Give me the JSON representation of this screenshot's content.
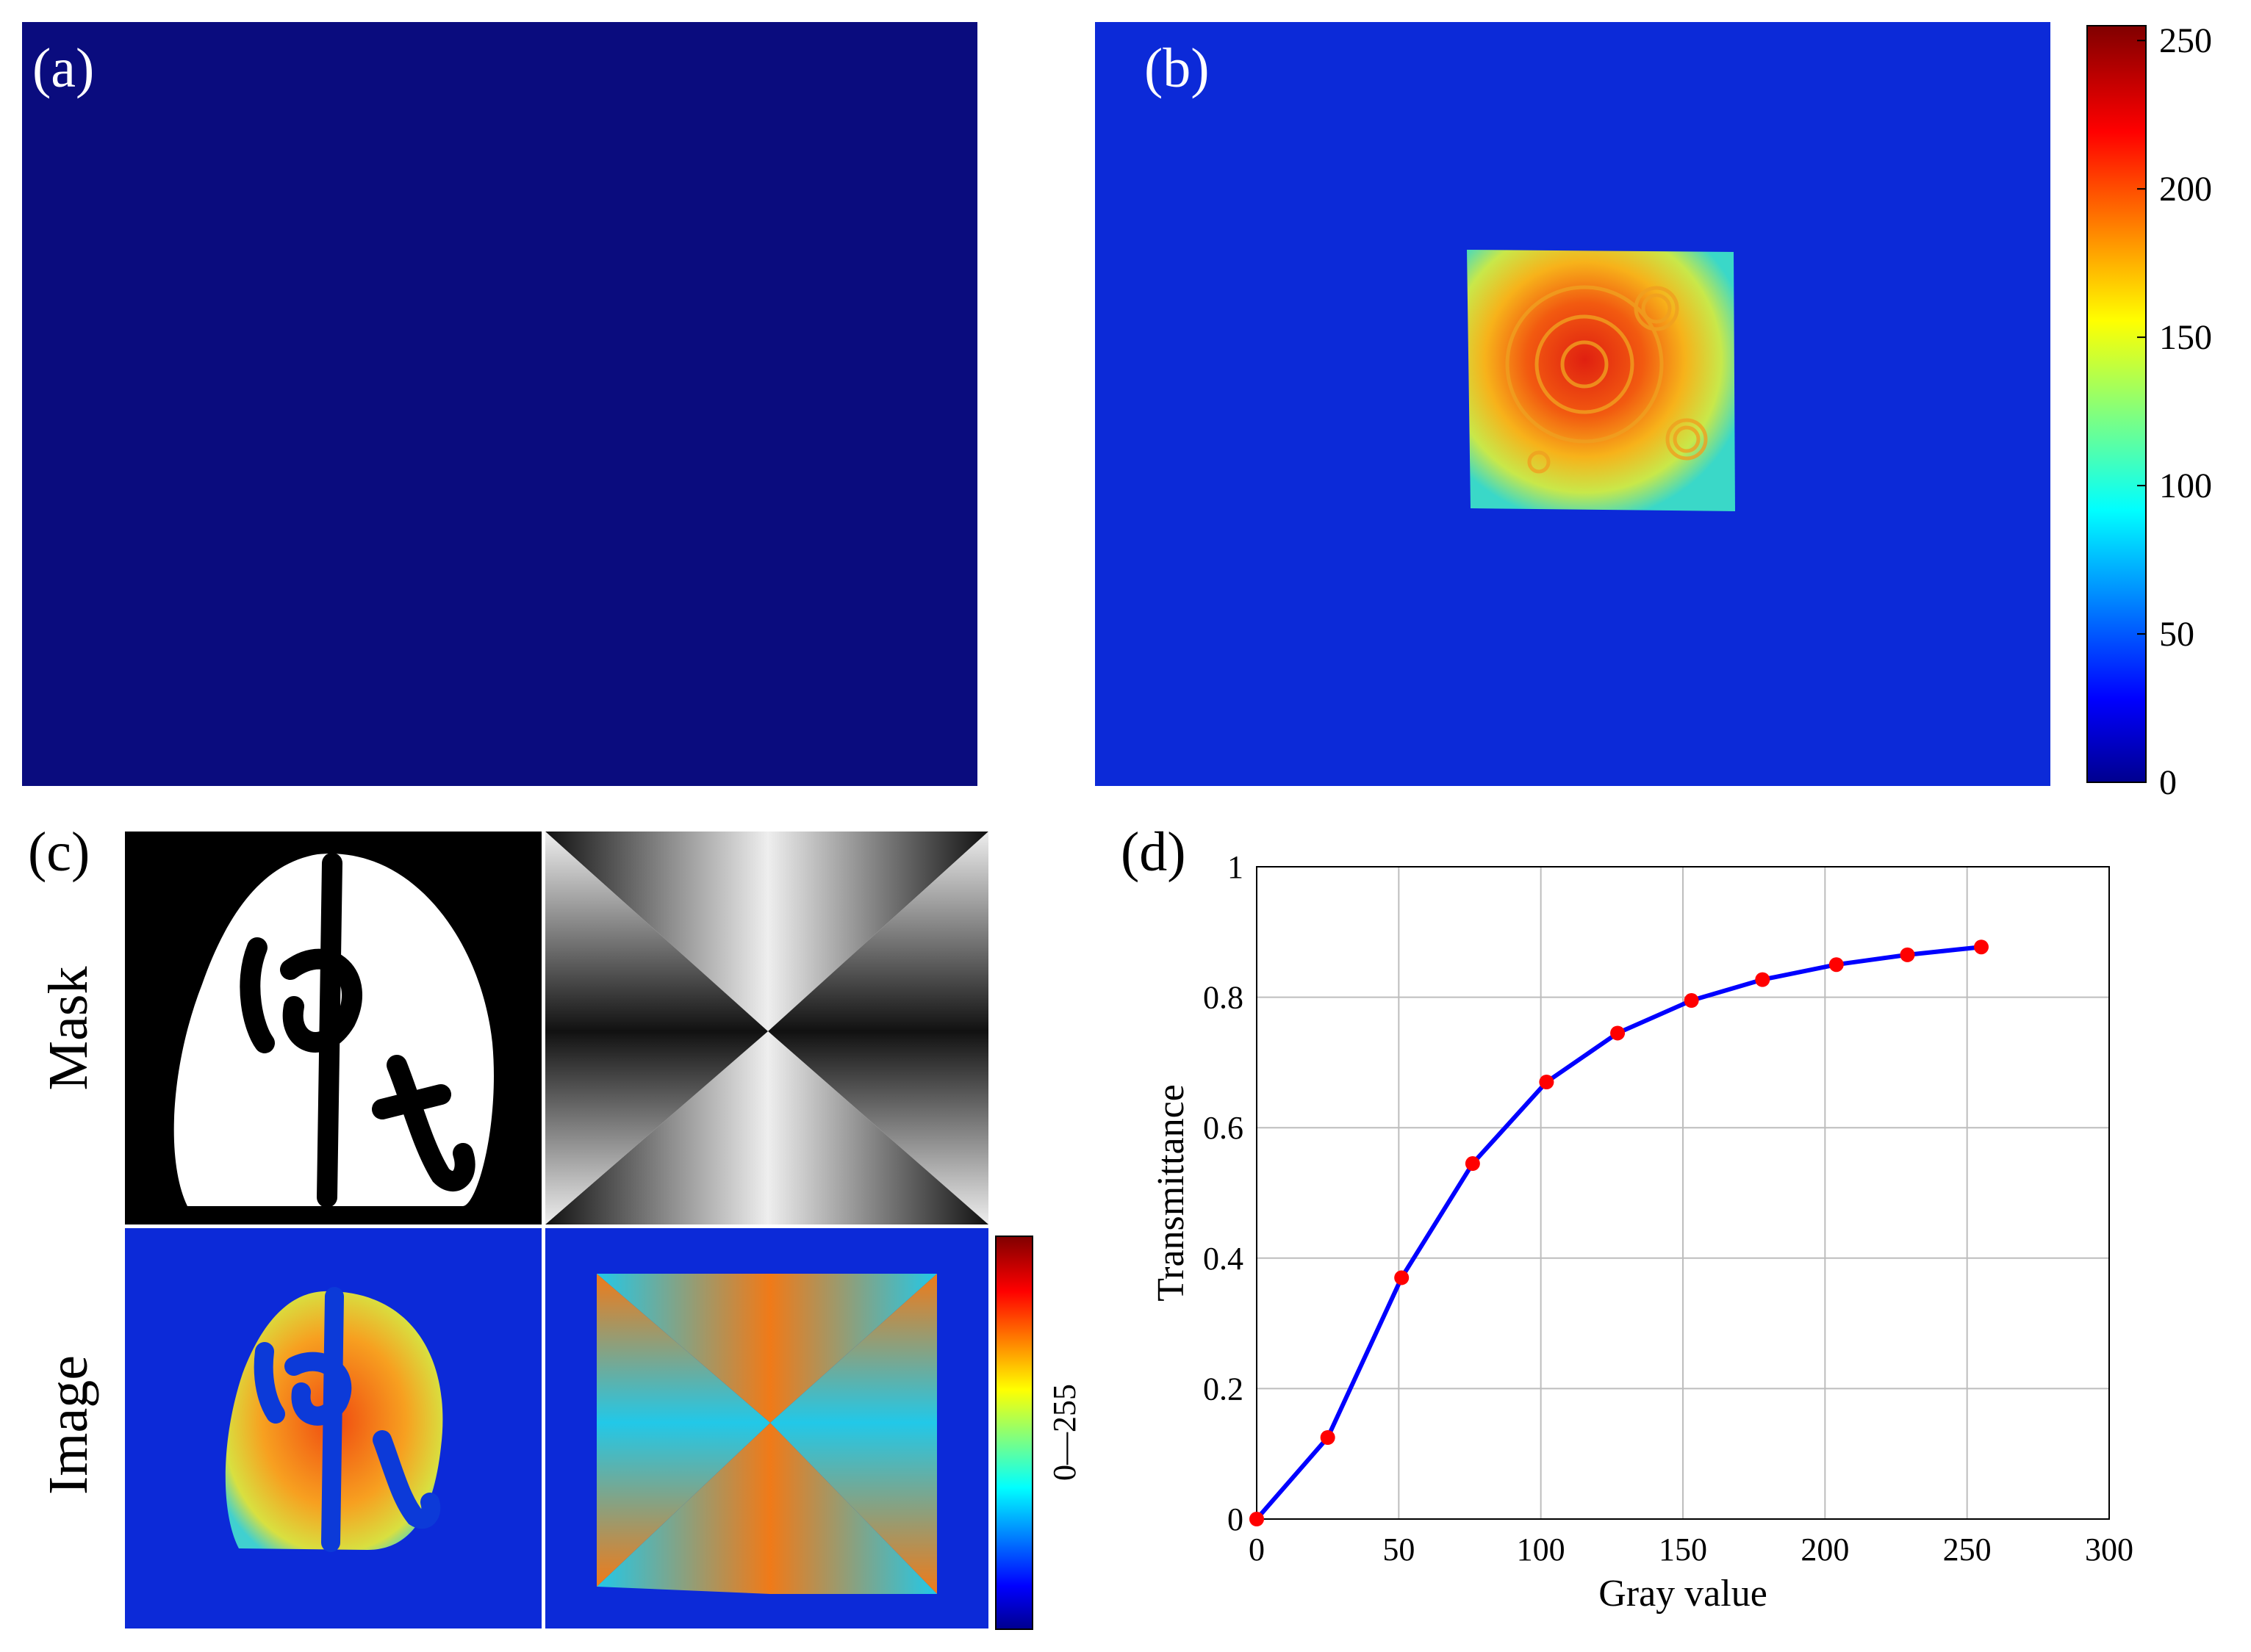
{
  "panels": {
    "a": {
      "label": "(a)"
    },
    "b": {
      "label": "(b)"
    },
    "c": {
      "label": "(c)",
      "row_labels": [
        "Mask",
        "Image"
      ],
      "colorbar_label": "0—255"
    },
    "d": {
      "label": "(d)"
    }
  },
  "colorbar_b": {
    "ticks": [
      0,
      50,
      100,
      150,
      200,
      250
    ],
    "range": [
      0,
      255
    ]
  },
  "colors": {
    "background_dark_blue": "#0a0c7e",
    "background_blue": "#0c2ad8",
    "series_line": "#0000ff",
    "series_marker": "#ff0000"
  },
  "chart_data": {
    "type": "line",
    "title": "",
    "xlabel": "Gray value",
    "ylabel": "Transmittance",
    "xlim": [
      0,
      300
    ],
    "ylim": [
      0,
      1
    ],
    "xticks": [
      0,
      50,
      100,
      150,
      200,
      250,
      300
    ],
    "yticks": [
      0,
      0.2,
      0.4,
      0.6,
      0.8,
      1
    ],
    "grid": true,
    "series": [
      {
        "name": "Transmittance",
        "x": [
          0,
          25,
          51,
          76,
          102,
          127,
          153,
          178,
          204,
          229,
          255
        ],
        "y": [
          0.0,
          0.125,
          0.37,
          0.545,
          0.67,
          0.745,
          0.795,
          0.827,
          0.85,
          0.865,
          0.877
        ]
      }
    ]
  }
}
